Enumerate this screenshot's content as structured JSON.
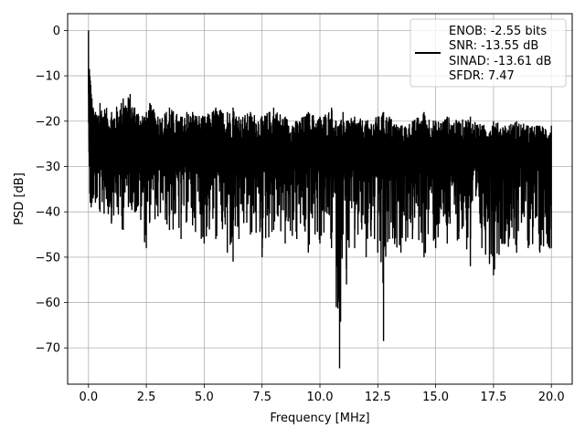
{
  "chart_data": {
    "type": "line",
    "title": "",
    "xlabel": "Frequency [MHz]",
    "ylabel": "PSD [dB]",
    "xlim": [
      -0.9,
      20.9
    ],
    "ylim": [
      -78,
      3.7
    ],
    "xticks": [
      0.0,
      2.5,
      5.0,
      7.5,
      10.0,
      12.5,
      15.0,
      17.5,
      20.0
    ],
    "xtick_labels": [
      "0.0",
      "2.5",
      "5.0",
      "7.5",
      "10.0",
      "12.5",
      "15.0",
      "17.5",
      "20.0"
    ],
    "yticks": [
      0,
      -10,
      -20,
      -30,
      -40,
      -50,
      -60,
      -70
    ],
    "ytick_labels": [
      "0",
      "−10",
      "−20",
      "−30",
      "−40",
      "−50",
      "−60",
      "−70"
    ],
    "grid": true,
    "legend_position": "top-right",
    "legend_lines": [
      "ENOB: -2.55 bits",
      "SNR: -13.55 dB",
      "SINAD: -13.61 dB",
      "SFDR: 7.47"
    ],
    "line_color": "#000000",
    "series": [
      {
        "name": "ENOB: -2.55 bits",
        "x": [
          0.0,
          0.02,
          0.04,
          0.06,
          0.08,
          0.1,
          0.12,
          0.15,
          0.2,
          0.3,
          0.5,
          1.0,
          1.5,
          1.8,
          2.0,
          2.5,
          2.65,
          3.0,
          3.5,
          4.0,
          4.25,
          4.5,
          5.0,
          5.5,
          6.0,
          6.25,
          6.5,
          7.0,
          7.5,
          8.0,
          8.5,
          9.0,
          9.5,
          10.0,
          10.5,
          10.85,
          11.0,
          11.15,
          11.5,
          12.0,
          12.5,
          12.75,
          13.0,
          13.5,
          14.0,
          14.5,
          15.0,
          15.5,
          16.0,
          16.5,
          17.0,
          17.5,
          18.0,
          18.5,
          19.0,
          19.5,
          20.0
        ],
        "y_upper": [
          0.0,
          -9.0,
          -8.5,
          -10.0,
          -11.0,
          -12.0,
          -14.0,
          -15.0,
          -17.0,
          -18.0,
          -16.0,
          -18.0,
          -15.0,
          -14.0,
          -17.0,
          -18.0,
          -16.0,
          -19.0,
          -17.0,
          -19.0,
          -18.0,
          -18.0,
          -19.0,
          -17.0,
          -18.0,
          -17.0,
          -19.0,
          -18.0,
          -19.0,
          -17.0,
          -19.0,
          -20.0,
          -18.0,
          -19.0,
          -17.0,
          -21.0,
          -18.0,
          -20.0,
          -19.0,
          -20.0,
          -19.0,
          -18.0,
          -19.0,
          -21.0,
          -20.0,
          -18.0,
          -20.0,
          -19.0,
          -20.0,
          -19.0,
          -21.0,
          -20.0,
          -21.0,
          -20.0,
          -21.0,
          -21.0,
          -21.0
        ],
        "y_lower": [
          -14.0,
          -24.0,
          -30.0,
          -36.0,
          -38.0,
          -37.0,
          -39.0,
          -38.0,
          -37.0,
          -38.0,
          -40.0,
          -42.0,
          -44.0,
          -38.0,
          -40.0,
          -48.0,
          -42.0,
          -41.0,
          -44.0,
          -46.0,
          -42.0,
          -43.0,
          -47.0,
          -46.0,
          -49.0,
          -51.0,
          -46.0,
          -45.0,
          -50.0,
          -44.0,
          -47.0,
          -46.0,
          -49.0,
          -47.0,
          -48.0,
          -74.5,
          -45.0,
          -56.0,
          -48.0,
          -50.0,
          -49.0,
          -68.5,
          -46.0,
          -49.0,
          -46.0,
          -50.0,
          -48.0,
          -47.0,
          -46.0,
          -52.0,
          -48.0,
          -54.0,
          -47.0,
          -49.0,
          -48.0,
          -49.0,
          -48.0
        ]
      }
    ]
  }
}
